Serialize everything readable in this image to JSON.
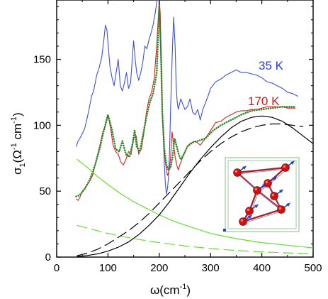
{
  "chart_data": {
    "type": "line",
    "xlabel_main": "ω(cm",
    "xlabel_sup": "-1",
    "xlabel_close": ")",
    "ylabel": {
      "main": "σ",
      "sub": "1",
      "open": "(Ω",
      "sup1": "-1",
      "mid": " cm",
      "sup2": "-1",
      "close": ")"
    },
    "xlim": [
      0,
      500
    ],
    "ylim": [
      0,
      195
    ],
    "x_ticks": [
      0,
      100,
      200,
      300,
      400,
      500
    ],
    "x_tick_labels": [
      "0",
      "100",
      "200",
      "300",
      "400",
      "500"
    ],
    "y_ticks": [
      0,
      50,
      100,
      150
    ],
    "y_tick_labels": [
      "0",
      "50",
      "100",
      "150"
    ],
    "annotations": [
      {
        "text": "35 K",
        "color": "#2a3ad8"
      },
      {
        "text": "170 K",
        "color": "#d81818"
      }
    ],
    "colors": {
      "spectrum_35K": "#3d4fe0",
      "spectrum_170K": "#e02020",
      "fit_170K": "#2a8a2a",
      "drude": "#66dd33",
      "overdamped": "#000000",
      "inset_frame": "#88bb88",
      "atoms": "#cc1111",
      "bonds": "#aa2222",
      "arrows": "#2244cc"
    },
    "series": [
      {
        "name": "",
        "role": "spectrum_35K",
        "style": "solid",
        "x": [
          38,
          42,
          48,
          55,
          62,
          68,
          72,
          78,
          83,
          88,
          92,
          95,
          98,
          101,
          104,
          108,
          112,
          116,
          120,
          124,
          128,
          132,
          136,
          140,
          144,
          147,
          150,
          153,
          156,
          160,
          164,
          168,
          172,
          176,
          180,
          184,
          188,
          192,
          196,
          200,
          202,
          204,
          206,
          208,
          210,
          212,
          214,
          216,
          218,
          220,
          222,
          225,
          228,
          231,
          233,
          235,
          237,
          239,
          242,
          246,
          250,
          255,
          260,
          265,
          270,
          275,
          280,
          285,
          290,
          295,
          300,
          310,
          320,
          330,
          340,
          350,
          360,
          370,
          380,
          390,
          400,
          410,
          420,
          430,
          440,
          450,
          460,
          470
        ],
        "y": [
          84,
          88,
          92,
          98,
          110,
          122,
          126,
          138,
          144,
          152,
          165,
          176,
          172,
          158,
          144,
          136,
          130,
          140,
          150,
          130,
          126,
          132,
          140,
          128,
          132,
          148,
          164,
          150,
          140,
          134,
          140,
          148,
          160,
          158,
          165,
          170,
          176,
          185,
          195,
          195,
          165,
          140,
          110,
          90,
          70,
          55,
          48,
          52,
          60,
          80,
          110,
          150,
          182,
          160,
          130,
          118,
          112,
          115,
          120,
          116,
          112,
          114,
          120,
          110,
          108,
          112,
          104,
          112,
          117,
          122,
          128,
          133,
          135,
          138,
          140,
          142,
          140,
          140,
          139,
          138,
          136,
          133,
          132,
          130,
          128,
          125,
          124,
          122
        ]
      },
      {
        "name": "",
        "role": "spectrum_170K",
        "style": "solid",
        "x": [
          38,
          42,
          46,
          50,
          55,
          60,
          65,
          70,
          75,
          80,
          85,
          90,
          95,
          100,
          105,
          110,
          115,
          120,
          125,
          130,
          135,
          140,
          145,
          150,
          155,
          160,
          165,
          170,
          175,
          180,
          185,
          190,
          195,
          200,
          202,
          204,
          206,
          208,
          210,
          212,
          214,
          216,
          218,
          220,
          222,
          225,
          228,
          231,
          234,
          237,
          240,
          245,
          250,
          255,
          260,
          270,
          280,
          290,
          300,
          310,
          320,
          330,
          340,
          350,
          360,
          370,
          380,
          390,
          400,
          410,
          420,
          430,
          440,
          450,
          460,
          465
        ],
        "y": [
          44,
          43,
          46,
          50,
          52,
          55,
          58,
          62,
          70,
          78,
          86,
          95,
          100,
          108,
          98,
          85,
          80,
          78,
          72,
          70,
          74,
          80,
          78,
          90,
          92,
          78,
          82,
          94,
          110,
          120,
          125,
          135,
          160,
          195,
          185,
          150,
          110,
          90,
          80,
          72,
          66,
          62,
          64,
          68,
          75,
          95,
          85,
          76,
          70,
          66,
          70,
          75,
          80,
          84,
          86,
          88,
          85,
          90,
          96,
          102,
          103,
          106,
          108,
          110,
          111,
          111,
          112,
          112,
          113,
          114,
          114,
          114,
          114,
          113,
          113,
          113
        ]
      },
      {
        "name": "",
        "role": "fit_170K",
        "style": "dotted",
        "x": [
          38,
          45,
          55,
          65,
          75,
          85,
          92,
          100,
          108,
          115,
          122,
          128,
          135,
          142,
          148,
          152,
          156,
          162,
          168,
          175,
          182,
          188,
          195,
          200,
          203,
          206,
          210,
          214,
          218,
          222,
          226,
          230,
          234,
          238,
          242,
          248,
          255,
          265,
          275,
          290,
          305,
          320,
          340,
          360,
          380,
          400,
          420,
          440,
          455,
          465
        ],
        "y": [
          46,
          47,
          52,
          59,
          70,
          84,
          96,
          108,
          96,
          82,
          80,
          88,
          78,
          76,
          86,
          96,
          84,
          80,
          92,
          106,
          118,
          124,
          140,
          190,
          160,
          110,
          82,
          70,
          66,
          68,
          76,
          90,
          84,
          78,
          74,
          78,
          84,
          87,
          88,
          90,
          96,
          100,
          104,
          108,
          111,
          112,
          113,
          114,
          114,
          114
        ]
      },
      {
        "name": "",
        "role": "drude",
        "style": "solid",
        "x": [
          40,
          60,
          80,
          100,
          125,
          150,
          175,
          200,
          230,
          260,
          300,
          350,
          400,
          450,
          500
        ],
        "y": [
          74,
          68,
          61,
          55,
          48,
          42,
          37,
          32,
          27,
          23,
          18,
          14,
          11,
          9,
          7
        ]
      },
      {
        "name": "",
        "role": "drude",
        "style": "dashed",
        "x": [
          40,
          60,
          80,
          100,
          125,
          150,
          175,
          200,
          230,
          260,
          300,
          350,
          400,
          450,
          500
        ],
        "y": [
          24,
          22,
          20,
          18,
          16,
          14,
          12.5,
          11,
          9.5,
          8,
          6.5,
          5,
          4,
          3.2,
          2.5
        ]
      },
      {
        "name": "",
        "role": "overdamped",
        "style": "solid",
        "x": [
          40,
          60,
          80,
          100,
          120,
          140,
          160,
          180,
          200,
          220,
          240,
          260,
          280,
          300,
          320,
          340,
          360,
          380,
          400,
          420,
          440,
          460,
          480,
          500
        ],
        "y": [
          0.5,
          1.2,
          2.5,
          4.5,
          7.5,
          11.5,
          17,
          24,
          32,
          42,
          53,
          64,
          74,
          83,
          91,
          98,
          103,
          106,
          107,
          106,
          103,
          98,
          92,
          86
        ]
      },
      {
        "name": "",
        "role": "overdamped",
        "style": "dashed",
        "x": [
          40,
          60,
          80,
          100,
          120,
          140,
          160,
          180,
          200,
          220,
          240,
          260,
          280,
          300,
          320,
          340,
          360,
          380,
          400,
          420,
          440,
          460,
          480
        ],
        "y": [
          1,
          3,
          6,
          10,
          15,
          20,
          26,
          33,
          41,
          49,
          57,
          65,
          73,
          80,
          86,
          91,
          95,
          98,
          100,
          101,
          101,
          100,
          99
        ]
      }
    ]
  }
}
